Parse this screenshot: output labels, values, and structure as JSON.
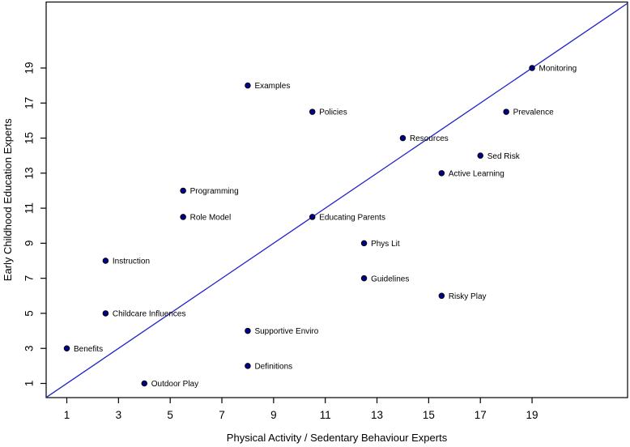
{
  "figure": {
    "background": "#ffffff",
    "axis_color": "#000000",
    "text_color": "#000000"
  },
  "chart_data": {
    "type": "scatter",
    "title": "",
    "xlabel": "Physical Activity / Sedentary Behaviour Experts",
    "ylabel": "Early Childhood Education Experts",
    "xlim": [
      0.2,
      22.7
    ],
    "ylim": [
      0.2,
      22.8
    ],
    "x_ticks": [
      1,
      3,
      5,
      7,
      9,
      11,
      13,
      15,
      17,
      19
    ],
    "y_ticks": [
      1,
      3,
      5,
      7,
      9,
      11,
      13,
      15,
      17,
      19
    ],
    "grid": false,
    "legend_position": "none",
    "point_color": "#00008b",
    "point_edge_color": "#000000",
    "identity_line": {
      "type": "y=x",
      "color": "#2323cd"
    },
    "points": [
      {
        "label": "Benefits",
        "x": 1,
        "y": 3
      },
      {
        "label": "Outdoor Play",
        "x": 4,
        "y": 1
      },
      {
        "label": "Childcare Influences",
        "x": 2.5,
        "y": 5
      },
      {
        "label": "Instruction",
        "x": 2.5,
        "y": 8
      },
      {
        "label": "Role Model",
        "x": 5.5,
        "y": 10.5
      },
      {
        "label": "Programming",
        "x": 5.5,
        "y": 12
      },
      {
        "label": "Definitions",
        "x": 8,
        "y": 2
      },
      {
        "label": "Supportive Enviro",
        "x": 8,
        "y": 4
      },
      {
        "label": "Examples",
        "x": 8,
        "y": 18
      },
      {
        "label": "Educating Parents",
        "x": 10.5,
        "y": 10.5
      },
      {
        "label": "Policies",
        "x": 10.5,
        "y": 16.5
      },
      {
        "label": "Guidelines",
        "x": 12.5,
        "y": 7
      },
      {
        "label": "Phys Lit",
        "x": 12.5,
        "y": 9
      },
      {
        "label": "Resources",
        "x": 14,
        "y": 15
      },
      {
        "label": "Risky Play",
        "x": 15.5,
        "y": 6
      },
      {
        "label": "Active Learning",
        "x": 15.5,
        "y": 13
      },
      {
        "label": "Sed Risk",
        "x": 17,
        "y": 14
      },
      {
        "label": "Prevalence",
        "x": 18,
        "y": 16.5
      },
      {
        "label": "Monitoring",
        "x": 19,
        "y": 19
      }
    ]
  }
}
